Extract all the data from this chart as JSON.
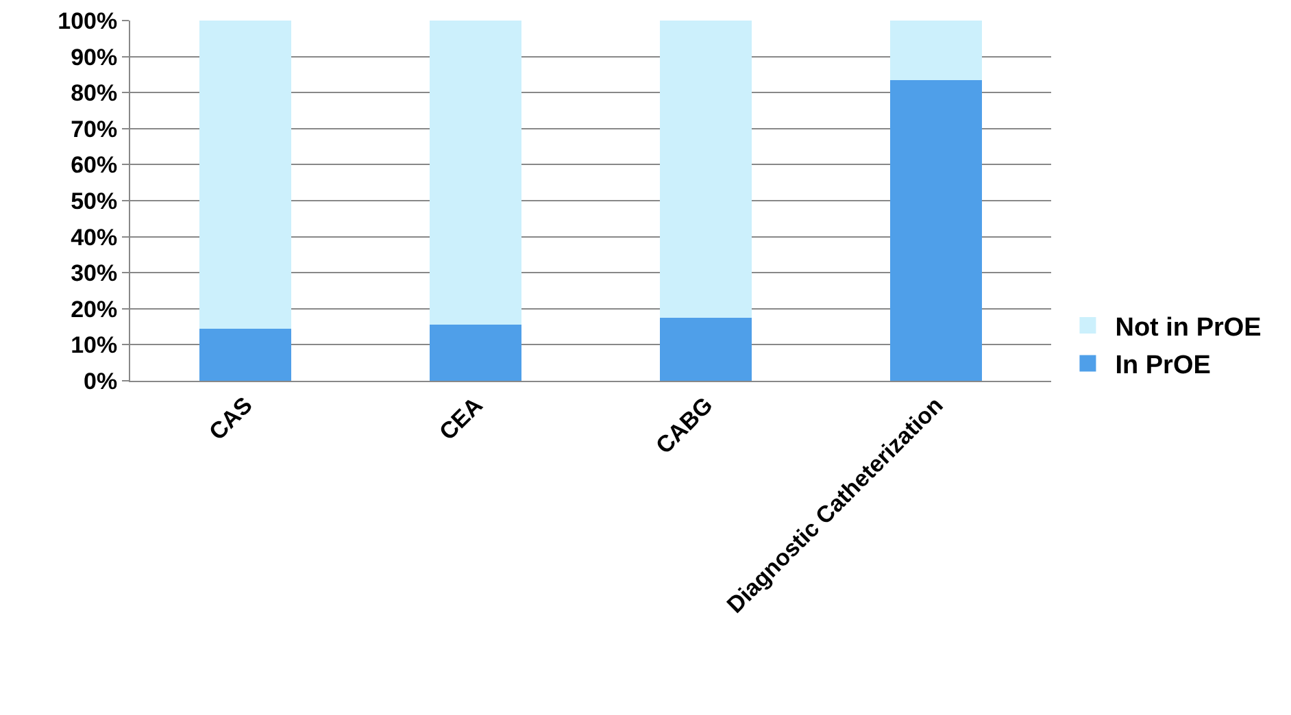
{
  "chart_data": {
    "type": "bar",
    "stacked": true,
    "categories": [
      "CAS",
      "CEA",
      "CABG",
      "Diagnostic Catheterization"
    ],
    "series": [
      {
        "name": "In PrOE",
        "color": "#4f9fe9",
        "values": [
          14.5,
          15.5,
          17.5,
          83.5
        ]
      },
      {
        "name": "Not in PrOE",
        "color": "#ccf0fc",
        "values": [
          85.5,
          84.5,
          82.5,
          16.5
        ]
      }
    ],
    "ylim": [
      0,
      100
    ],
    "yticks": [
      {
        "value": 0,
        "label": "0%"
      },
      {
        "value": 10,
        "label": "10%"
      },
      {
        "value": 20,
        "label": "20%"
      },
      {
        "value": 30,
        "label": "30%"
      },
      {
        "value": 40,
        "label": "40%"
      },
      {
        "value": 50,
        "label": "50%"
      },
      {
        "value": 60,
        "label": "60%"
      },
      {
        "value": 70,
        "label": "70%"
      },
      {
        "value": 80,
        "label": "80%"
      },
      {
        "value": 90,
        "label": "90%"
      },
      {
        "value": 100,
        "label": "100%"
      }
    ],
    "grid": "y",
    "legend": "right"
  }
}
